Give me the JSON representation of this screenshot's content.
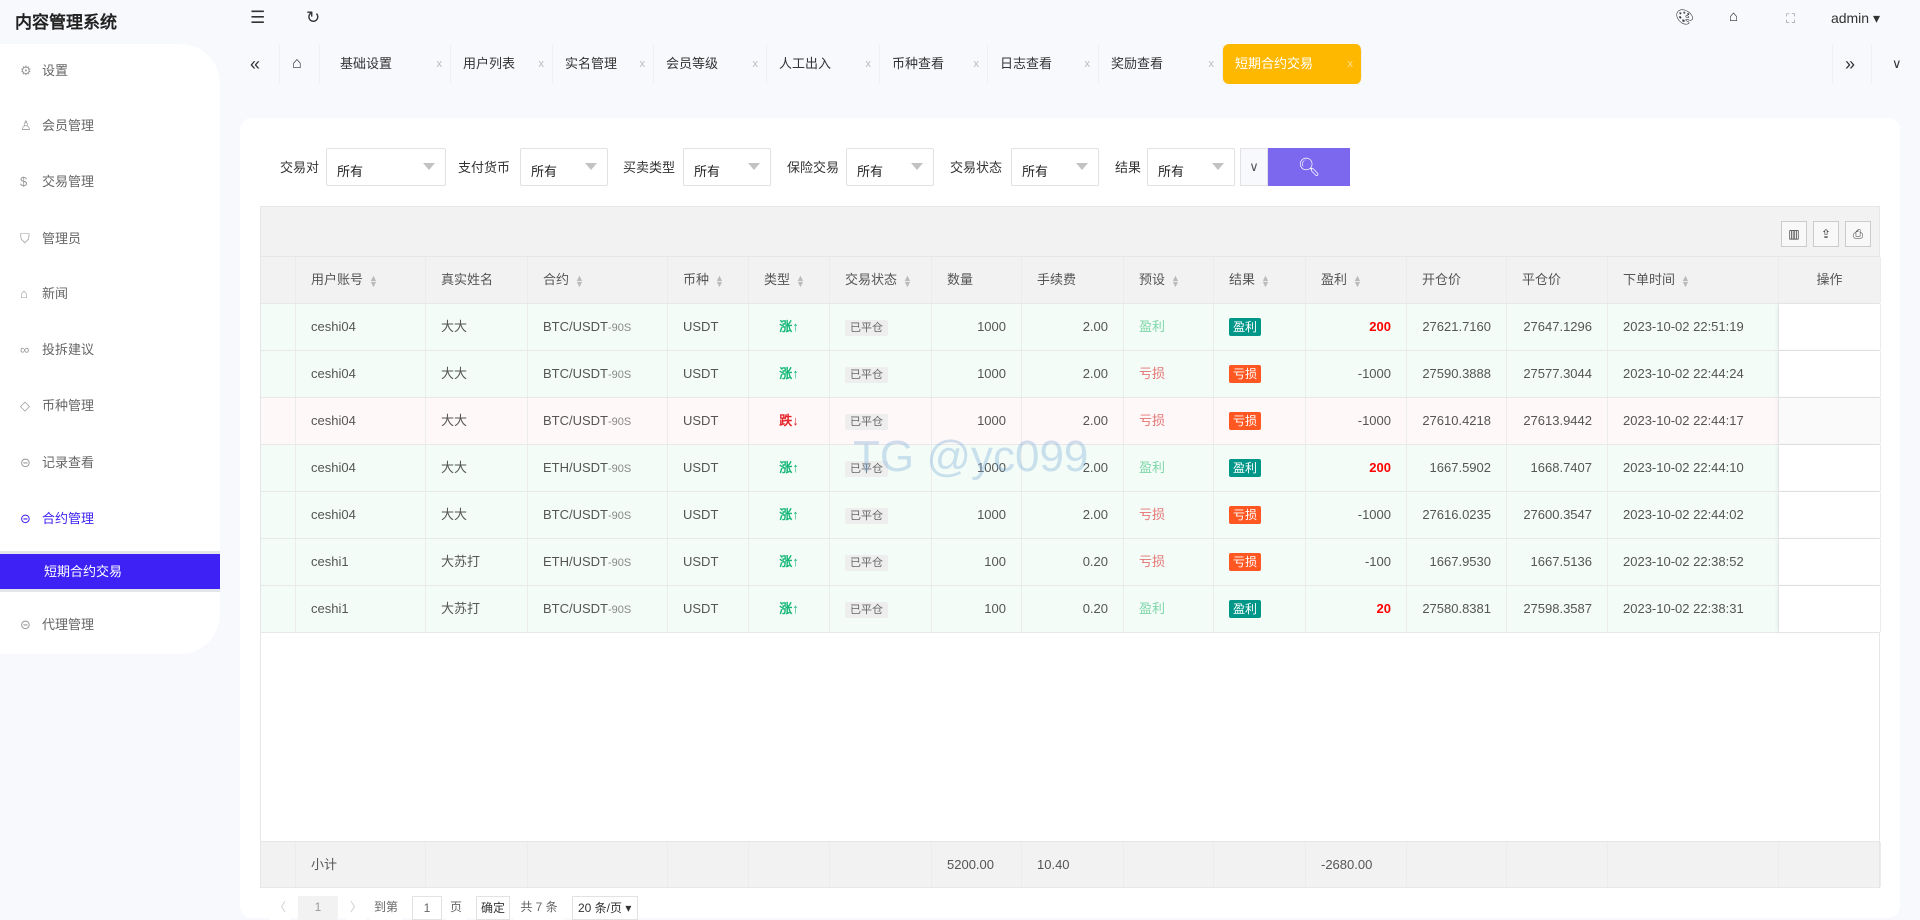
{
  "app": {
    "title": "内容管理系统",
    "user": "admin"
  },
  "header_icons": [
    "menu-fold-icon",
    "refresh-icon",
    "theme-palette-icon",
    "tag-icon",
    "fullscreen-icon"
  ],
  "sidebar": {
    "items": [
      {
        "label": "设置",
        "icon": "gear-icon"
      },
      {
        "label": "会员管理",
        "icon": "user-icon"
      },
      {
        "label": "交易管理",
        "icon": "dollar-icon"
      },
      {
        "label": "管理员",
        "icon": "shield-icon"
      },
      {
        "label": "新闻",
        "icon": "tag-icon"
      },
      {
        "label": "投拆建议",
        "icon": "link-icon"
      },
      {
        "label": "币种管理",
        "icon": "diamond-icon"
      },
      {
        "label": "记录查看",
        "icon": "circle-arrow-icon"
      },
      {
        "label": "合约管理",
        "icon": "circle-arrow-icon"
      }
    ],
    "active_sub": "短期合约交易",
    "last": {
      "label": "代理管理",
      "icon": "circle-arrow-icon"
    },
    "accent": "#3d21f5"
  },
  "tabs": [
    {
      "label": "基础设置"
    },
    {
      "label": "用户列表"
    },
    {
      "label": "实名管理"
    },
    {
      "label": "会员等级"
    },
    {
      "label": "人工出入"
    },
    {
      "label": "币种查看"
    },
    {
      "label": "日志查看"
    },
    {
      "label": "奖励查看"
    },
    {
      "label": "短期合约交易",
      "active": true
    }
  ],
  "tab_close": "x",
  "tab_active_color": "#ffb800",
  "filters": [
    {
      "label": "交易对",
      "value": "所有"
    },
    {
      "label": "支付货币",
      "value": "所有"
    },
    {
      "label": "买卖类型",
      "value": "所有"
    },
    {
      "label": "保险交易",
      "value": "所有"
    },
    {
      "label": "交易状态",
      "value": "所有"
    },
    {
      "label": "结果",
      "value": "所有"
    }
  ],
  "search_color": "#7b68ee",
  "table": {
    "columns": [
      {
        "label": "用户账号",
        "sort": true
      },
      {
        "label": "真实姓名"
      },
      {
        "label": "合约",
        "sort": true
      },
      {
        "label": "币种",
        "sort": true
      },
      {
        "label": "类型",
        "sort": true
      },
      {
        "label": "交易状态",
        "sort": true
      },
      {
        "label": "数量"
      },
      {
        "label": "手续费"
      },
      {
        "label": "预设",
        "sort": true
      },
      {
        "label": "结果",
        "sort": true
      },
      {
        "label": "盈利",
        "sort": true
      },
      {
        "label": "开仓价"
      },
      {
        "label": "平仓价"
      },
      {
        "label": "下单时间",
        "sort": true
      },
      {
        "label": "操作"
      }
    ],
    "rows": [
      {
        "user": "ceshi04",
        "name": "大大",
        "pair": "BTC/USDT",
        "period": "-90S",
        "coin": "USDT",
        "type": "涨↑",
        "dir": "up",
        "status": "已平仓",
        "qty": "1000",
        "fee": "2.00",
        "preset": "盈利",
        "result": "盈利",
        "profit": "200",
        "open": "27621.7160",
        "close": "27647.1296",
        "time": "2023-10-02 22:51:19"
      },
      {
        "user": "ceshi04",
        "name": "大大",
        "pair": "BTC/USDT",
        "period": "-90S",
        "coin": "USDT",
        "type": "涨↑",
        "dir": "up",
        "status": "已平仓",
        "qty": "1000",
        "fee": "2.00",
        "preset": "亏损",
        "result": "亏损",
        "profit": "-1000",
        "open": "27590.3888",
        "close": "27577.3044",
        "time": "2023-10-02 22:44:24"
      },
      {
        "user": "ceshi04",
        "name": "大大",
        "pair": "BTC/USDT",
        "period": "-90S",
        "coin": "USDT",
        "type": "跌↓",
        "dir": "down",
        "status": "已平仓",
        "qty": "1000",
        "fee": "2.00",
        "preset": "亏损",
        "result": "亏损",
        "profit": "-1000",
        "open": "27610.4218",
        "close": "27613.9442",
        "time": "2023-10-02 22:44:17"
      },
      {
        "user": "ceshi04",
        "name": "大大",
        "pair": "ETH/USDT",
        "period": "-90S",
        "coin": "USDT",
        "type": "涨↑",
        "dir": "up",
        "status": "已平仓",
        "qty": "1000",
        "fee": "2.00",
        "preset": "盈利",
        "result": "盈利",
        "profit": "200",
        "open": "1667.5902",
        "close": "1668.7407",
        "time": "2023-10-02 22:44:10"
      },
      {
        "user": "ceshi04",
        "name": "大大",
        "pair": "BTC/USDT",
        "period": "-90S",
        "coin": "USDT",
        "type": "涨↑",
        "dir": "up",
        "status": "已平仓",
        "qty": "1000",
        "fee": "2.00",
        "preset": "亏损",
        "result": "亏损",
        "profit": "-1000",
        "open": "27616.0235",
        "close": "27600.3547",
        "time": "2023-10-02 22:44:02"
      },
      {
        "user": "ceshi1",
        "name": "大苏打",
        "pair": "ETH/USDT",
        "period": "-90S",
        "coin": "USDT",
        "type": "涨↑",
        "dir": "up",
        "status": "已平仓",
        "qty": "100",
        "fee": "0.20",
        "preset": "亏损",
        "result": "亏损",
        "profit": "-100",
        "open": "1667.9530",
        "close": "1667.5136",
        "time": "2023-10-02 22:38:52"
      },
      {
        "user": "ceshi1",
        "name": "大苏打",
        "pair": "BTC/USDT",
        "period": "-90S",
        "coin": "USDT",
        "type": "涨↑",
        "dir": "up",
        "status": "已平仓",
        "qty": "100",
        "fee": "0.20",
        "preset": "盈利",
        "result": "盈利",
        "profit": "20",
        "open": "27580.8381",
        "close": "27598.3587",
        "time": "2023-10-02 22:38:31"
      }
    ],
    "subtotal": {
      "label": "小计",
      "qty": "5200.00",
      "fee": "10.40",
      "profit": "-2680.00"
    }
  },
  "toolbar_icons": [
    "columns-icon",
    "export-icon",
    "print-icon"
  ],
  "watermark": "TG @yc099",
  "pager": {
    "prev": "〈",
    "page": "1",
    "next": "〉",
    "goto": "到第",
    "goto_value": "1",
    "page_unit": "页",
    "confirm": "确定",
    "total": "共 7 条",
    "per_page": "20 条/页"
  }
}
